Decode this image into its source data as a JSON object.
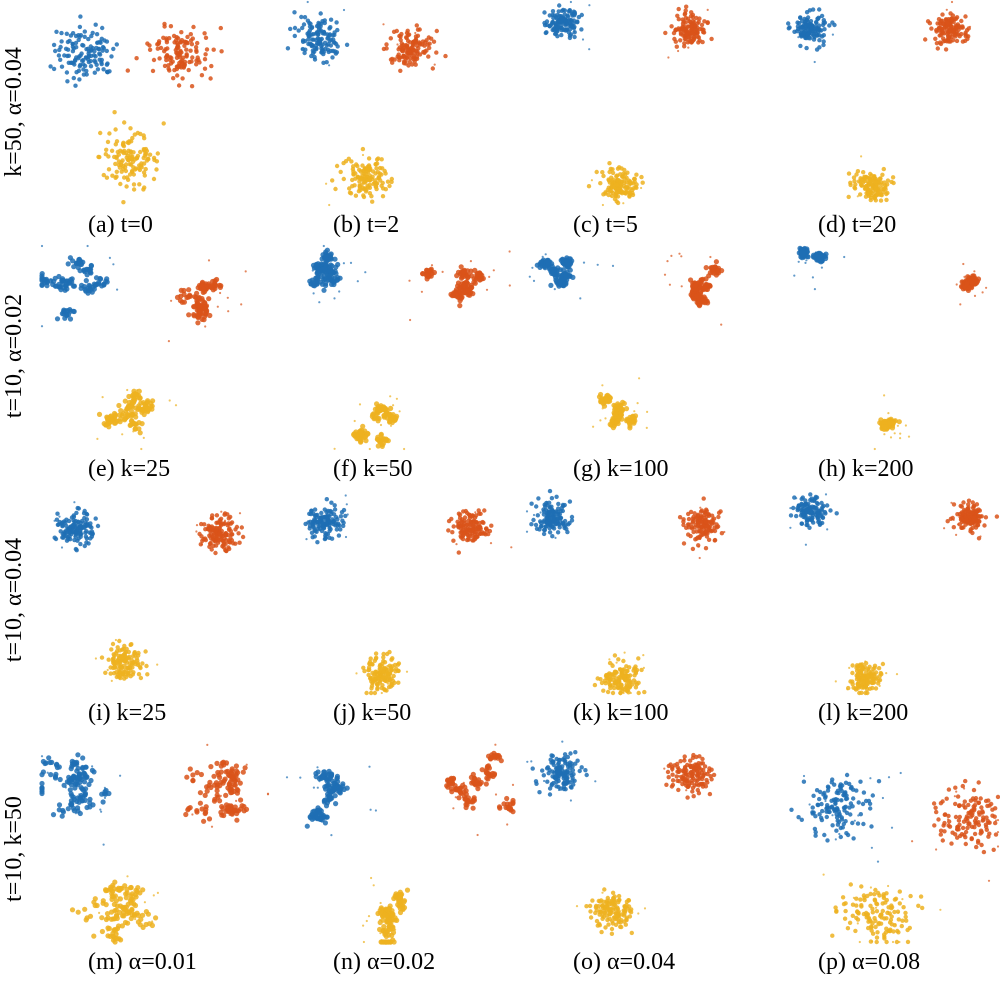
{
  "colors": {
    "blue": "#1f6fb4",
    "orange": "#d9541a",
    "yellow": "#edb120"
  },
  "rows": [
    {
      "label": "k=50, α=0.04"
    },
    {
      "label": "t=10, α=0.02"
    },
    {
      "label": "t=10, α=0.04"
    },
    {
      "label": "t=10, k=50"
    }
  ],
  "chart_data": {
    "type": "scatter",
    "panels": [
      {
        "caption": "(a) t=0",
        "spread": 1.0,
        "fragments": 1,
        "jitter": 0.0
      },
      {
        "caption": "(b) t=2",
        "spread": 0.75,
        "fragments": 1,
        "jitter": 0.1
      },
      {
        "caption": "(c) t=5",
        "spread": 0.55,
        "fragments": 1,
        "jitter": 0.15
      },
      {
        "caption": "(d) t=20",
        "spread": 0.55,
        "fragments": 1,
        "jitter": 0.2
      },
      {
        "caption": "(e) k=25",
        "spread": 0.9,
        "fragments": 8,
        "jitter": 0.3
      },
      {
        "caption": "(f) k=50",
        "spread": 0.8,
        "fragments": 6,
        "jitter": 0.3
      },
      {
        "caption": "(g) k=100",
        "spread": 0.7,
        "fragments": 5,
        "jitter": 0.3
      },
      {
        "caption": "(h) k=200",
        "spread": 0.5,
        "fragments": 2,
        "jitter": 0.3
      },
      {
        "caption": "(i) k=25",
        "spread": 0.6,
        "fragments": 1,
        "jitter": 0.2
      },
      {
        "caption": "(j) k=50",
        "spread": 0.6,
        "fragments": 1,
        "jitter": 0.2
      },
      {
        "caption": "(k) k=100",
        "spread": 0.6,
        "fragments": 1,
        "jitter": 0.25
      },
      {
        "caption": "(l) k=200",
        "spread": 0.5,
        "fragments": 1,
        "jitter": 0.25
      },
      {
        "caption": "(m) α=0.01",
        "spread": 1.0,
        "fragments": 20,
        "jitter": 0.3
      },
      {
        "caption": "(n) α=0.02",
        "spread": 0.85,
        "fragments": 7,
        "jitter": 0.3
      },
      {
        "caption": "(o) α=0.04",
        "spread": 0.65,
        "fragments": 1,
        "jitter": 0.2
      },
      {
        "caption": "(p) α=0.08",
        "spread": 1.1,
        "fragments": 1,
        "jitter": 0.4
      }
    ]
  }
}
